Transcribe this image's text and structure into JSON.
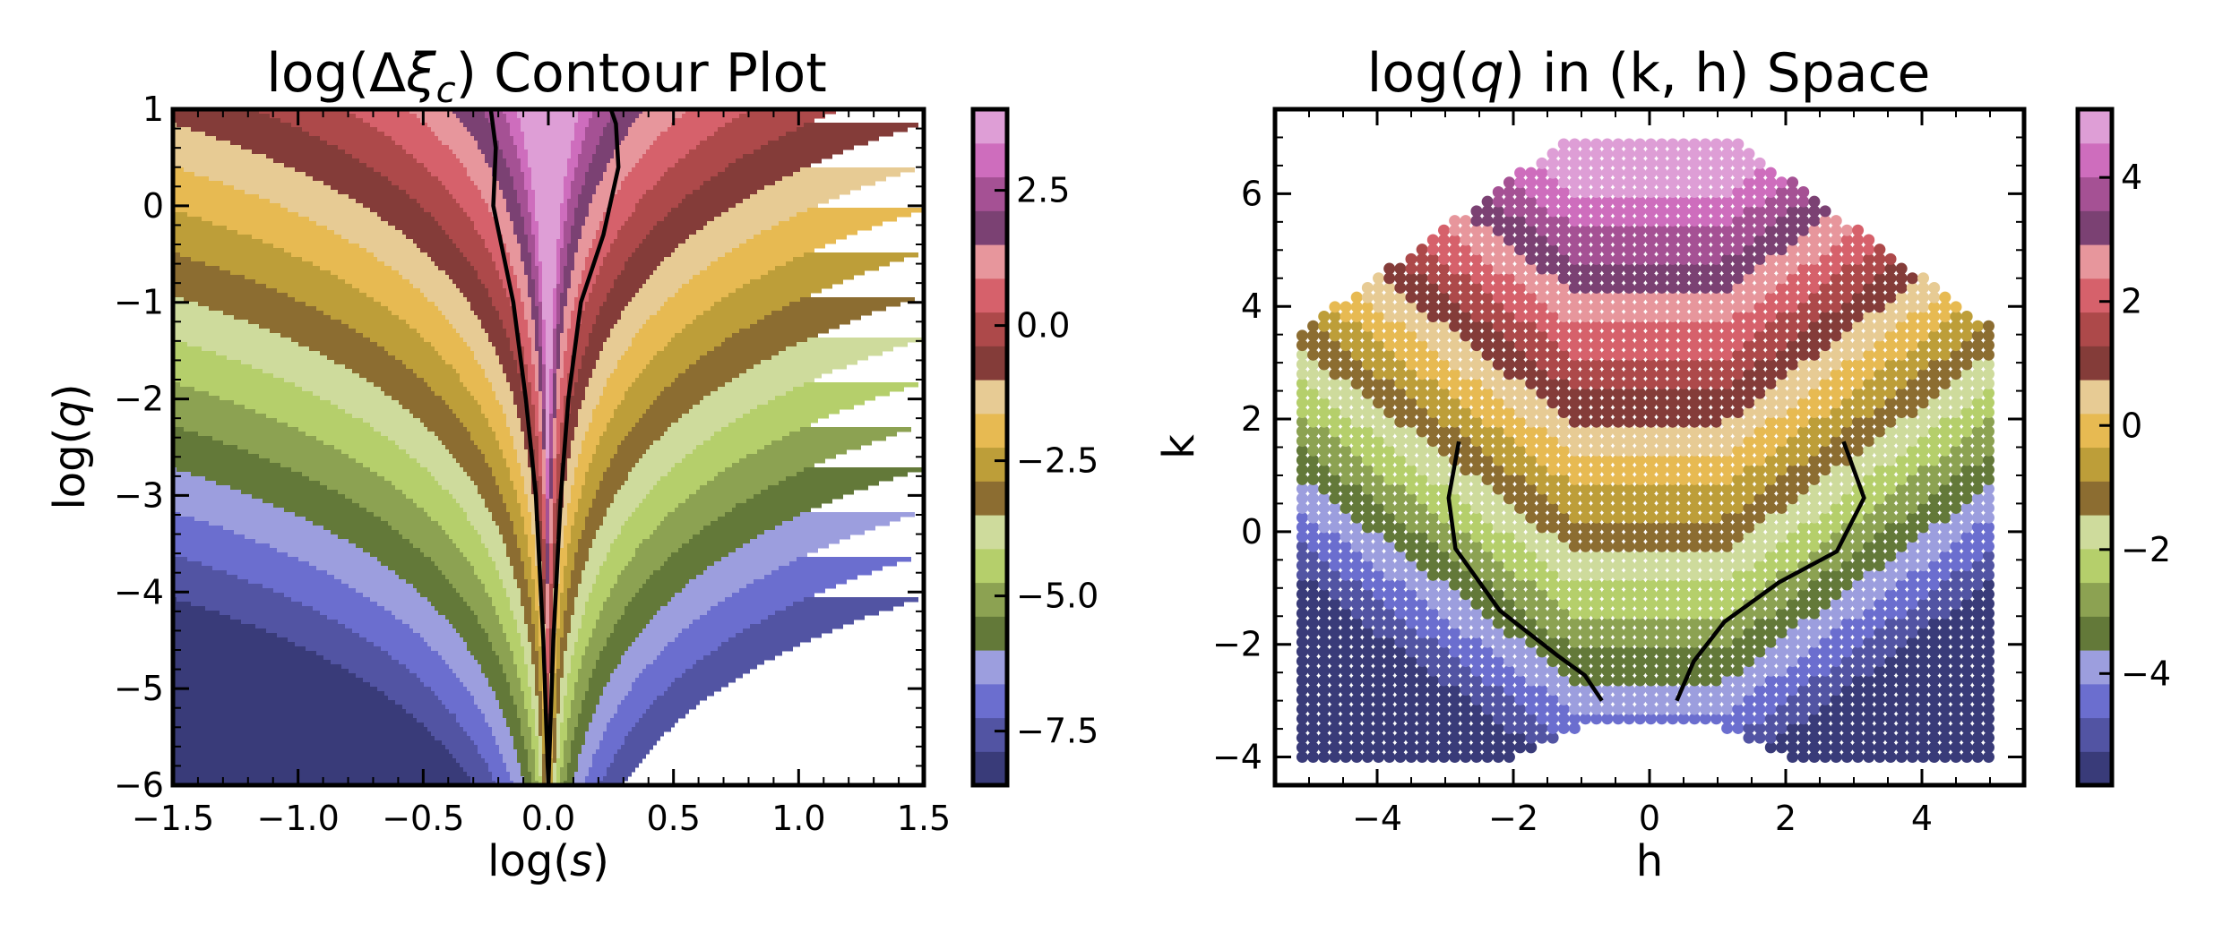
{
  "chart_data": [
    {
      "type": "contour",
      "title": "log(Δξ_c) Contour Plot",
      "title_parts": {
        "pre": "log(Δ",
        "sym": "ξ",
        "sub": "c",
        "post": ") Contour Plot"
      },
      "xlabel": "log(s)",
      "xlabel_parts": {
        "pre": "log(",
        "sym": "s",
        "post": ")"
      },
      "ylabel": "log(q)",
      "ylabel_parts": {
        "pre": "log(",
        "sym": "q",
        "post": ")"
      },
      "xlim": [
        -1.5,
        1.5
      ],
      "ylim": [
        -6,
        1
      ],
      "xticks": [
        -1.5,
        -1.0,
        -0.5,
        0.0,
        0.5,
        1.0,
        1.5
      ],
      "xtick_labels": [
        "−1.5",
        "−1.0",
        "−0.5",
        "0.0",
        "0.5",
        "1.0",
        "1.5"
      ],
      "yticks": [
        1,
        0,
        -1,
        -2,
        -3,
        -4,
        -5,
        -6
      ],
      "ytick_labels": [
        "1",
        "0",
        "−1",
        "−2",
        "−3",
        "−4",
        "−5",
        "−6"
      ],
      "colorbar": {
        "range": [
          -8.5,
          4.0
        ],
        "ticks": [
          2.5,
          0.0,
          -2.5,
          -5.0,
          -7.5
        ],
        "tick_labels": [
          "2.5",
          "0.0",
          "−2.5",
          "−5.0",
          "−7.5"
        ]
      },
      "caustic_curve": {
        "color": "#000000",
        "points": [
          [
            0.0,
            -6.0
          ],
          [
            0.02,
            -4.5
          ],
          [
            0.05,
            -3.0
          ],
          [
            0.08,
            -2.0
          ],
          [
            0.13,
            -1.0
          ],
          [
            0.22,
            -0.3
          ],
          [
            0.28,
            0.4
          ],
          [
            0.27,
            0.85
          ],
          [
            0.25,
            1.0
          ],
          [
            -0.23,
            1.0
          ],
          [
            -0.21,
            0.6
          ],
          [
            -0.22,
            0.0
          ],
          [
            -0.14,
            -1.0
          ],
          [
            -0.09,
            -2.0
          ],
          [
            -0.05,
            -3.0
          ],
          [
            -0.02,
            -4.5
          ],
          [
            0.0,
            -6.0
          ]
        ]
      }
    },
    {
      "type": "scatter",
      "title": "log(q) in (k, h) Space",
      "title_parts": {
        "pre": "log(",
        "sym": "q",
        "post": ") in (k, h) Space"
      },
      "xlabel": "h",
      "ylabel": "k",
      "xlim": [
        -5.5,
        5.5
      ],
      "ylim": [
        -4.5,
        7.5
      ],
      "xticks": [
        -4,
        -2,
        0,
        2,
        4
      ],
      "xtick_labels": [
        "−4",
        "−2",
        "0",
        "2",
        "4"
      ],
      "yticks": [
        6,
        4,
        2,
        0,
        -2,
        -4
      ],
      "ytick_labels": [
        "6",
        "4",
        "2",
        "0",
        "−2",
        "−4"
      ],
      "colorbar": {
        "range": [
          -5.8,
          5.1
        ],
        "ticks": [
          4,
          2,
          0,
          -2,
          -4
        ],
        "tick_labels": [
          "4",
          "2",
          "0",
          "−2",
          "−4"
        ]
      },
      "curves": [
        {
          "points": [
            [
              -2.8,
              1.6
            ],
            [
              -2.95,
              0.6
            ],
            [
              -2.85,
              -0.3
            ],
            [
              -2.2,
              -1.4
            ],
            [
              -1.35,
              -2.2
            ],
            [
              -0.95,
              -2.55
            ],
            [
              -0.7,
              -3.0
            ]
          ]
        },
        {
          "points": [
            [
              2.85,
              1.6
            ],
            [
              3.15,
              0.6
            ],
            [
              2.75,
              -0.35
            ],
            [
              1.9,
              -0.9
            ],
            [
              1.1,
              -1.6
            ],
            [
              0.65,
              -2.3
            ],
            [
              0.4,
              -3.0
            ]
          ]
        }
      ]
    }
  ],
  "palette": [
    "#393b79",
    "#5254a3",
    "#6b6ecf",
    "#9c9ede",
    "#637939",
    "#8ca252",
    "#b5cf6b",
    "#cedb9c",
    "#8c6d31",
    "#bd9e39",
    "#e7ba52",
    "#e7cb94",
    "#843c39",
    "#ad494a",
    "#d6616b",
    "#e7969c",
    "#7b4173",
    "#a55194",
    "#ce6dbd",
    "#de9ed6"
  ]
}
